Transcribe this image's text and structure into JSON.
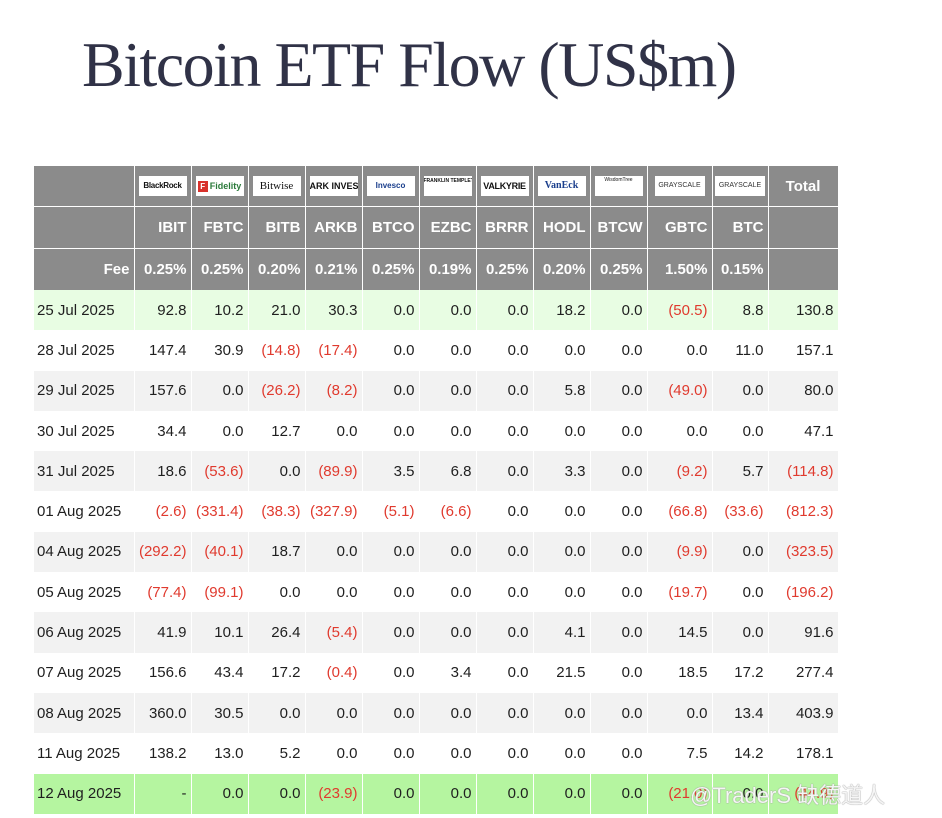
{
  "title": "Bitcoin ETF Flow (US$m)",
  "header": {
    "logos": [
      "BlackRock",
      "Fidelity",
      "Bitwise",
      "ARK INVEST",
      "Invesco",
      "FRANKLIN TEMPLETON",
      "VALKYRIE",
      "VanEck",
      "WisdomTree",
      "GRAYSCALE",
      "GRAYSCALE"
    ],
    "total_label": "Total",
    "tickers": [
      "IBIT",
      "FBTC",
      "BITB",
      "ARKB",
      "BTCO",
      "EZBC",
      "BRRR",
      "HODL",
      "BTCW",
      "GBTC",
      "BTC"
    ],
    "fee_label": "Fee",
    "fees": [
      "0.25%",
      "0.25%",
      "0.20%",
      "0.21%",
      "0.25%",
      "0.19%",
      "0.25%",
      "0.20%",
      "0.25%",
      "1.50%",
      "0.15%"
    ]
  },
  "rows": [
    {
      "date": "25 Jul 2025",
      "cells": [
        "92.8",
        "10.2",
        "21.0",
        "30.3",
        "0.0",
        "0.0",
        "0.0",
        "18.2",
        "0.0",
        "(50.5)",
        "8.8",
        "130.8"
      ]
    },
    {
      "date": "28 Jul 2025",
      "cells": [
        "147.4",
        "30.9",
        "(14.8)",
        "(17.4)",
        "0.0",
        "0.0",
        "0.0",
        "0.0",
        "0.0",
        "0.0",
        "11.0",
        "157.1"
      ]
    },
    {
      "date": "29 Jul 2025",
      "cells": [
        "157.6",
        "0.0",
        "(26.2)",
        "(8.2)",
        "0.0",
        "0.0",
        "0.0",
        "5.8",
        "0.0",
        "(49.0)",
        "0.0",
        "80.0"
      ]
    },
    {
      "date": "30 Jul 2025",
      "cells": [
        "34.4",
        "0.0",
        "12.7",
        "0.0",
        "0.0",
        "0.0",
        "0.0",
        "0.0",
        "0.0",
        "0.0",
        "0.0",
        "47.1"
      ]
    },
    {
      "date": "31 Jul 2025",
      "cells": [
        "18.6",
        "(53.6)",
        "0.0",
        "(89.9)",
        "3.5",
        "6.8",
        "0.0",
        "3.3",
        "0.0",
        "(9.2)",
        "5.7",
        "(114.8)"
      ]
    },
    {
      "date": "01 Aug 2025",
      "cells": [
        "(2.6)",
        "(331.4)",
        "(38.3)",
        "(327.9)",
        "(5.1)",
        "(6.6)",
        "0.0",
        "0.0",
        "0.0",
        "(66.8)",
        "(33.6)",
        "(812.3)"
      ]
    },
    {
      "date": "04 Aug 2025",
      "cells": [
        "(292.2)",
        "(40.1)",
        "18.7",
        "0.0",
        "0.0",
        "0.0",
        "0.0",
        "0.0",
        "0.0",
        "(9.9)",
        "0.0",
        "(323.5)"
      ]
    },
    {
      "date": "05 Aug 2025",
      "cells": [
        "(77.4)",
        "(99.1)",
        "0.0",
        "0.0",
        "0.0",
        "0.0",
        "0.0",
        "0.0",
        "0.0",
        "(19.7)",
        "0.0",
        "(196.2)"
      ]
    },
    {
      "date": "06 Aug 2025",
      "cells": [
        "41.9",
        "10.1",
        "26.4",
        "(5.4)",
        "0.0",
        "0.0",
        "0.0",
        "4.1",
        "0.0",
        "14.5",
        "0.0",
        "91.6"
      ]
    },
    {
      "date": "07 Aug 2025",
      "cells": [
        "156.6",
        "43.4",
        "17.2",
        "(0.4)",
        "0.0",
        "3.4",
        "0.0",
        "21.5",
        "0.0",
        "18.5",
        "17.2",
        "277.4"
      ]
    },
    {
      "date": "08 Aug 2025",
      "cells": [
        "360.0",
        "30.5",
        "0.0",
        "0.0",
        "0.0",
        "0.0",
        "0.0",
        "0.0",
        "0.0",
        "0.0",
        "13.4",
        "403.9"
      ]
    },
    {
      "date": "11 Aug 2025",
      "cells": [
        "138.2",
        "13.0",
        "5.2",
        "0.0",
        "0.0",
        "0.0",
        "0.0",
        "0.0",
        "0.0",
        "7.5",
        "14.2",
        "178.1"
      ]
    },
    {
      "date": "12 Aug 2025",
      "cells": [
        "-",
        "0.0",
        "0.0",
        "(23.9)",
        "0.0",
        "0.0",
        "0.0",
        "0.0",
        "0.0",
        "(21.0)",
        "0.0",
        "(44.9)"
      ]
    }
  ],
  "watermark": "@TraderS 缺德道人",
  "colors": {
    "header_bg": "#8b8b8b",
    "negative": "#e03a2e",
    "highlight_light": "#e8fde3",
    "highlight_green": "#b5f5a0",
    "alt_row": "#f2f2f2",
    "title": "#303247"
  }
}
